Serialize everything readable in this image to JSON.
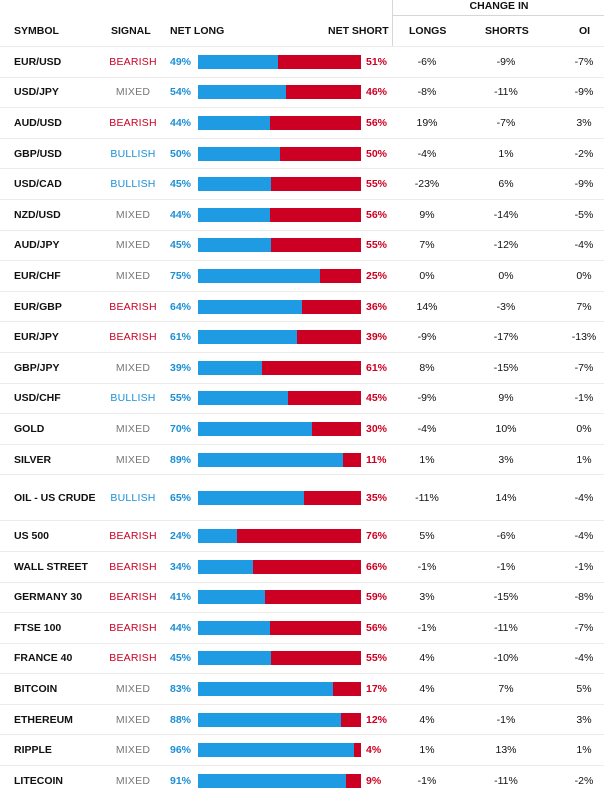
{
  "header": {
    "symbol": "SYMBOL",
    "signal": "SIGNAL",
    "net_long": "NET LONG",
    "net_short": "NET SHORT",
    "change_in": "CHANGE IN",
    "longs": "LONGS",
    "shorts": "SHORTS",
    "oi": "OI"
  },
  "colors": {
    "bearish": "#cc0022",
    "bullish": "#1a8fd6",
    "mixed": "#777777",
    "long_bar": "#1e9be2",
    "short_bar": "#cc0022"
  },
  "rows": [
    {
      "symbol": "EUR/USD",
      "signal": "BEARISH",
      "long_pct": "49%",
      "short_pct": "51%",
      "long_frac": 0.49,
      "longs": "-6%",
      "shorts": "-9%",
      "oi": "-7%"
    },
    {
      "symbol": "USD/JPY",
      "signal": "MIXED",
      "long_pct": "54%",
      "short_pct": "46%",
      "long_frac": 0.54,
      "longs": "-8%",
      "shorts": "-11%",
      "oi": "-9%"
    },
    {
      "symbol": "AUD/USD",
      "signal": "BEARISH",
      "long_pct": "44%",
      "short_pct": "56%",
      "long_frac": 0.44,
      "longs": "19%",
      "shorts": "-7%",
      "oi": "3%"
    },
    {
      "symbol": "GBP/USD",
      "signal": "BULLISH",
      "long_pct": "50%",
      "short_pct": "50%",
      "long_frac": 0.5,
      "longs": "-4%",
      "shorts": "1%",
      "oi": "-2%"
    },
    {
      "symbol": "USD/CAD",
      "signal": "BULLISH",
      "long_pct": "45%",
      "short_pct": "55%",
      "long_frac": 0.45,
      "longs": "-23%",
      "shorts": "6%",
      "oi": "-9%"
    },
    {
      "symbol": "NZD/USD",
      "signal": "MIXED",
      "long_pct": "44%",
      "short_pct": "56%",
      "long_frac": 0.44,
      "longs": "9%",
      "shorts": "-14%",
      "oi": "-5%"
    },
    {
      "symbol": "AUD/JPY",
      "signal": "MIXED",
      "long_pct": "45%",
      "short_pct": "55%",
      "long_frac": 0.45,
      "longs": "7%",
      "shorts": "-12%",
      "oi": "-4%"
    },
    {
      "symbol": "EUR/CHF",
      "signal": "MIXED",
      "long_pct": "75%",
      "short_pct": "25%",
      "long_frac": 0.75,
      "longs": "0%",
      "shorts": "0%",
      "oi": "0%"
    },
    {
      "symbol": "EUR/GBP",
      "signal": "BEARISH",
      "long_pct": "64%",
      "short_pct": "36%",
      "long_frac": 0.64,
      "longs": "14%",
      "shorts": "-3%",
      "oi": "7%"
    },
    {
      "symbol": "EUR/JPY",
      "signal": "BEARISH",
      "long_pct": "61%",
      "short_pct": "39%",
      "long_frac": 0.61,
      "longs": "-9%",
      "shorts": "-17%",
      "oi": "-13%"
    },
    {
      "symbol": "GBP/JPY",
      "signal": "MIXED",
      "long_pct": "39%",
      "short_pct": "61%",
      "long_frac": 0.39,
      "longs": "8%",
      "shorts": "-15%",
      "oi": "-7%"
    },
    {
      "symbol": "USD/CHF",
      "signal": "BULLISH",
      "long_pct": "55%",
      "short_pct": "45%",
      "long_frac": 0.55,
      "longs": "-9%",
      "shorts": "9%",
      "oi": "-1%"
    },
    {
      "symbol": "GOLD",
      "signal": "MIXED",
      "long_pct": "70%",
      "short_pct": "30%",
      "long_frac": 0.7,
      "longs": "-4%",
      "shorts": "10%",
      "oi": "0%"
    },
    {
      "symbol": "SILVER",
      "signal": "MIXED",
      "long_pct": "89%",
      "short_pct": "11%",
      "long_frac": 0.89,
      "longs": "1%",
      "shorts": "3%",
      "oi": "1%"
    },
    {
      "symbol": "OIL - US CRUDE",
      "signal": "BULLISH",
      "long_pct": "65%",
      "short_pct": "35%",
      "long_frac": 0.65,
      "longs": "-11%",
      "shorts": "14%",
      "oi": "-4%",
      "tall": true
    },
    {
      "symbol": "US 500",
      "signal": "BEARISH",
      "long_pct": "24%",
      "short_pct": "76%",
      "long_frac": 0.24,
      "longs": "5%",
      "shorts": "-6%",
      "oi": "-4%"
    },
    {
      "symbol": "WALL STREET",
      "signal": "BEARISH",
      "long_pct": "34%",
      "short_pct": "66%",
      "long_frac": 0.34,
      "longs": "-1%",
      "shorts": "-1%",
      "oi": "-1%"
    },
    {
      "symbol": "GERMANY 30",
      "signal": "BEARISH",
      "long_pct": "41%",
      "short_pct": "59%",
      "long_frac": 0.41,
      "longs": "3%",
      "shorts": "-15%",
      "oi": "-8%"
    },
    {
      "symbol": "FTSE 100",
      "signal": "BEARISH",
      "long_pct": "44%",
      "short_pct": "56%",
      "long_frac": 0.44,
      "longs": "-1%",
      "shorts": "-11%",
      "oi": "-7%"
    },
    {
      "symbol": "FRANCE 40",
      "signal": "BEARISH",
      "long_pct": "45%",
      "short_pct": "55%",
      "long_frac": 0.45,
      "longs": "4%",
      "shorts": "-10%",
      "oi": "-4%"
    },
    {
      "symbol": "BITCOIN",
      "signal": "MIXED",
      "long_pct": "83%",
      "short_pct": "17%",
      "long_frac": 0.83,
      "longs": "4%",
      "shorts": "7%",
      "oi": "5%"
    },
    {
      "symbol": "ETHEREUM",
      "signal": "MIXED",
      "long_pct": "88%",
      "short_pct": "12%",
      "long_frac": 0.88,
      "longs": "4%",
      "shorts": "-1%",
      "oi": "3%"
    },
    {
      "symbol": "RIPPLE",
      "signal": "MIXED",
      "long_pct": "96%",
      "short_pct": "4%",
      "long_frac": 0.96,
      "longs": "1%",
      "shorts": "13%",
      "oi": "1%"
    },
    {
      "symbol": "LITECOIN",
      "signal": "MIXED",
      "long_pct": "91%",
      "short_pct": "9%",
      "long_frac": 0.91,
      "longs": "-1%",
      "shorts": "-11%",
      "oi": "-2%"
    }
  ]
}
